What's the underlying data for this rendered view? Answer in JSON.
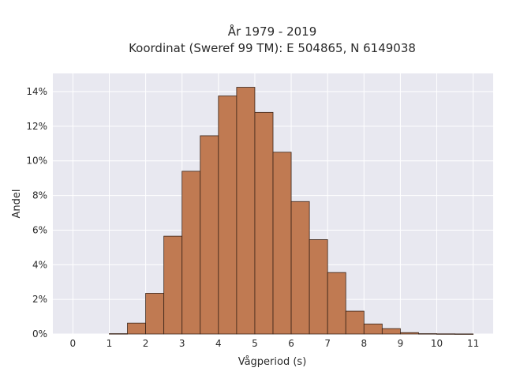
{
  "chart_data": {
    "type": "bar",
    "title_line1": "År 1979 - 2019",
    "title_line2": "Koordinat (Sweref 99 TM): E 504865, N 6149038",
    "xlabel": "Vågperiod (s)",
    "ylabel": "Andel",
    "bin_width": 0.5,
    "x": [
      1.0,
      1.5,
      2.0,
      2.5,
      3.0,
      3.5,
      4.0,
      4.5,
      5.0,
      5.5,
      6.0,
      6.5,
      7.0,
      7.5,
      8.0,
      8.5,
      9.0,
      9.5,
      10.0,
      10.5
    ],
    "values": [
      0.0002,
      0.0063,
      0.0235,
      0.0565,
      0.094,
      0.1145,
      0.1375,
      0.1425,
      0.128,
      0.105,
      0.0765,
      0.0545,
      0.0355,
      0.0132,
      0.0058,
      0.0031,
      0.0008,
      0.0002,
      0.0001,
      5e-05
    ],
    "xlim": [
      -0.55,
      11.55
    ],
    "ylim": [
      0,
      0.1505
    ],
    "xticks": [
      "0",
      "1",
      "2",
      "3",
      "4",
      "5",
      "6",
      "7",
      "8",
      "9",
      "10",
      "11"
    ],
    "yticks": [
      "0%",
      "2%",
      "4%",
      "6%",
      "8%",
      "10%",
      "12%",
      "14%"
    ],
    "bar_color": "#c07a52",
    "bar_edge_color": "#3a2418",
    "plot_bg": "#e8e8f0",
    "grid": true,
    "legend": "none"
  }
}
